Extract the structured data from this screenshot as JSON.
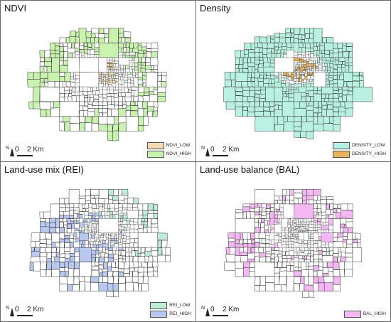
{
  "panels": [
    {
      "title": "NDVI",
      "variant": "ndvi",
      "legend": [
        {
          "label": "NDVI_LOW",
          "color": "#f3dcb4"
        },
        {
          "label": "NDVI_HIGH",
          "color": "#c9f2b1"
        }
      ],
      "scale": {
        "zero": "0",
        "distance": "2 Km"
      },
      "north": "N"
    },
    {
      "title": "Density",
      "variant": "density",
      "legend": [
        {
          "label": "DENSITY_LOW",
          "color": "#b8f0e2"
        },
        {
          "label": "DENSITY_HIGH",
          "color": "#e7b35c"
        }
      ],
      "scale": {
        "zero": "0",
        "distance": "2 Km"
      },
      "north": "N"
    },
    {
      "title": "Land-use mix (REI)",
      "variant": "rei",
      "legend": [
        {
          "label": "REI_LOW",
          "color": "#bfebd8"
        },
        {
          "label": "REI_HIGH",
          "color": "#b9c8ee"
        }
      ],
      "scale": {
        "zero": "0",
        "distance": "2 Km"
      },
      "north": "N"
    },
    {
      "title": "Land-use balance (BAL)",
      "variant": "bal",
      "legend": [
        {
          "label": "BAL_HIGH",
          "color": "#f3b8f2"
        }
      ],
      "scale": {
        "zero": "0",
        "distance": "2 Km"
      },
      "north": "N"
    }
  ]
}
